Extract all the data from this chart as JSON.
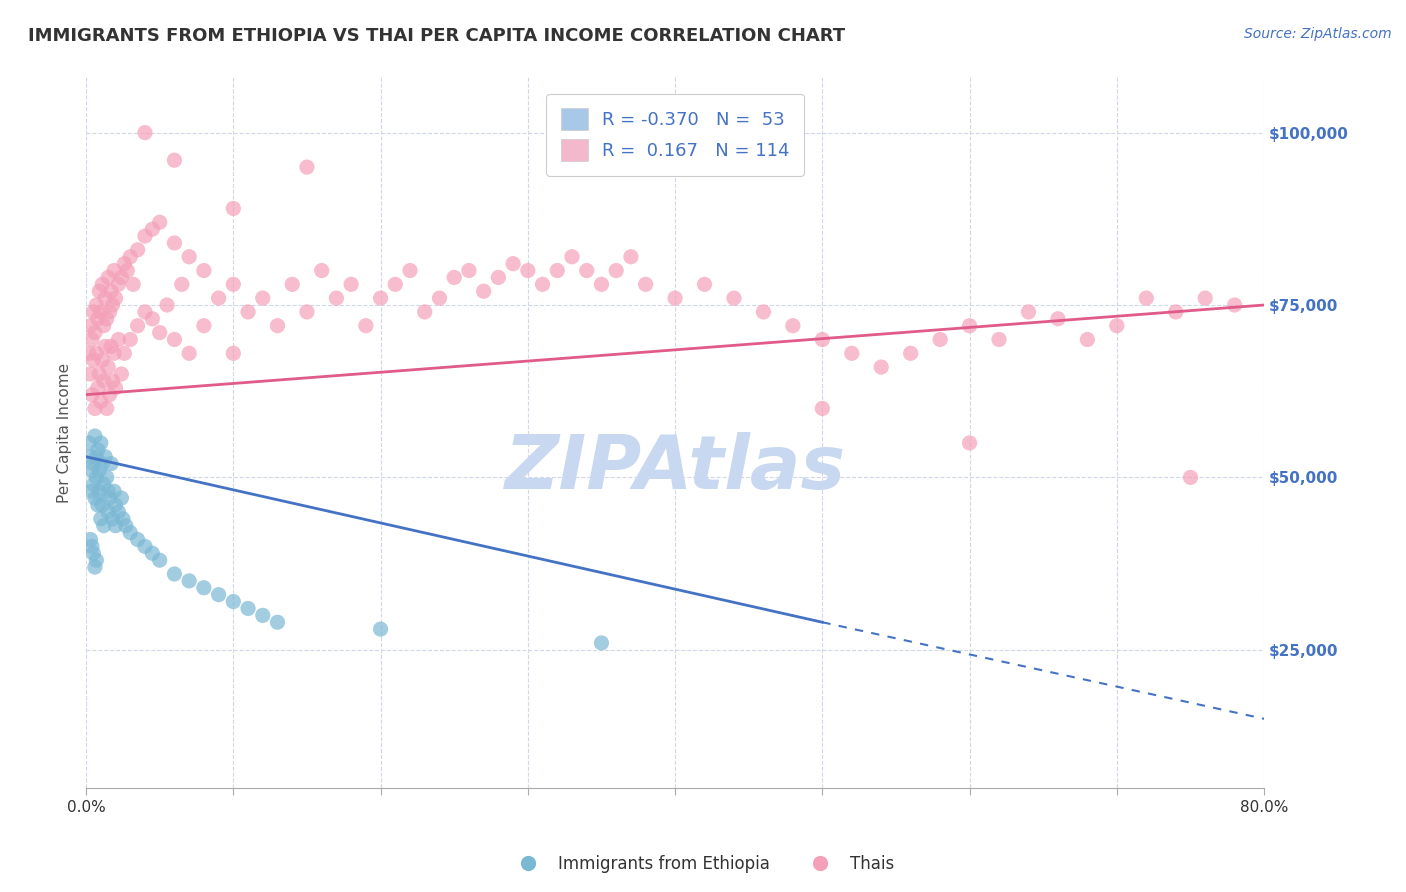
{
  "title": "IMMIGRANTS FROM ETHIOPIA VS THAI PER CAPITA INCOME CORRELATION CHART",
  "source": "Source: ZipAtlas.com",
  "ylabel": "Per Capita Income",
  "y_ticks": [
    25000,
    50000,
    75000,
    100000
  ],
  "y_tick_labels": [
    "$25,000",
    "$50,000",
    "$75,000",
    "$100,000"
  ],
  "ethiopia_color": "#7bb8d4",
  "thai_color": "#f4a0b8",
  "ethiopia_line_color": "#4472c4",
  "thai_line_color": "#e05a8a",
  "ethiopia_legend_color": "#a8c8e8",
  "thai_legend_color": "#f4b8cc",
  "watermark": "ZIPAtlas",
  "watermark_color": "#c8d8f0",
  "x_min": 0.0,
  "x_max": 0.8,
  "y_min": 5000,
  "y_max": 108000,
  "ethiopia_line_x0": 0.0,
  "ethiopia_line_y0": 53000,
  "ethiopia_line_x1": 0.5,
  "ethiopia_line_y1": 29000,
  "ethiopia_line_dash_x0": 0.5,
  "ethiopia_line_dash_y0": 29000,
  "ethiopia_line_dash_x1": 0.8,
  "ethiopia_line_dash_y1": 15000,
  "thai_line_x0": 0.0,
  "thai_line_y0": 62000,
  "thai_line_x1": 0.8,
  "thai_line_y1": 75000,
  "ethiopia_scatter": [
    [
      0.002,
      55000
    ],
    [
      0.003,
      53000
    ],
    [
      0.004,
      51000
    ],
    [
      0.004,
      48000
    ],
    [
      0.005,
      52000
    ],
    [
      0.005,
      49000
    ],
    [
      0.006,
      56000
    ],
    [
      0.006,
      47000
    ],
    [
      0.007,
      53000
    ],
    [
      0.007,
      50000
    ],
    [
      0.008,
      54000
    ],
    [
      0.008,
      46000
    ],
    [
      0.009,
      51000
    ],
    [
      0.009,
      48000
    ],
    [
      0.01,
      55000
    ],
    [
      0.01,
      44000
    ],
    [
      0.011,
      52000
    ],
    [
      0.011,
      46000
    ],
    [
      0.012,
      49000
    ],
    [
      0.012,
      43000
    ],
    [
      0.013,
      53000
    ],
    [
      0.014,
      50000
    ],
    [
      0.015,
      48000
    ],
    [
      0.015,
      45000
    ],
    [
      0.016,
      47000
    ],
    [
      0.017,
      52000
    ],
    [
      0.018,
      44000
    ],
    [
      0.019,
      48000
    ],
    [
      0.02,
      46000
    ],
    [
      0.02,
      43000
    ],
    [
      0.022,
      45000
    ],
    [
      0.024,
      47000
    ],
    [
      0.025,
      44000
    ],
    [
      0.027,
      43000
    ],
    [
      0.03,
      42000
    ],
    [
      0.035,
      41000
    ],
    [
      0.04,
      40000
    ],
    [
      0.045,
      39000
    ],
    [
      0.05,
      38000
    ],
    [
      0.06,
      36000
    ],
    [
      0.07,
      35000
    ],
    [
      0.08,
      34000
    ],
    [
      0.09,
      33000
    ],
    [
      0.1,
      32000
    ],
    [
      0.11,
      31000
    ],
    [
      0.12,
      30000
    ],
    [
      0.13,
      29000
    ],
    [
      0.003,
      41000
    ],
    [
      0.004,
      40000
    ],
    [
      0.005,
      39000
    ],
    [
      0.006,
      37000
    ],
    [
      0.007,
      38000
    ],
    [
      0.2,
      28000
    ],
    [
      0.35,
      26000
    ]
  ],
  "thai_scatter": [
    [
      0.002,
      68000
    ],
    [
      0.003,
      72000
    ],
    [
      0.003,
      65000
    ],
    [
      0.004,
      70000
    ],
    [
      0.004,
      62000
    ],
    [
      0.005,
      74000
    ],
    [
      0.005,
      67000
    ],
    [
      0.006,
      71000
    ],
    [
      0.006,
      60000
    ],
    [
      0.007,
      75000
    ],
    [
      0.007,
      68000
    ],
    [
      0.008,
      73000
    ],
    [
      0.008,
      63000
    ],
    [
      0.009,
      77000
    ],
    [
      0.009,
      65000
    ],
    [
      0.01,
      74000
    ],
    [
      0.01,
      61000
    ],
    [
      0.011,
      78000
    ],
    [
      0.011,
      67000
    ],
    [
      0.012,
      72000
    ],
    [
      0.012,
      64000
    ],
    [
      0.013,
      76000
    ],
    [
      0.013,
      69000
    ],
    [
      0.014,
      73000
    ],
    [
      0.014,
      60000
    ],
    [
      0.015,
      79000
    ],
    [
      0.015,
      66000
    ],
    [
      0.016,
      74000
    ],
    [
      0.016,
      62000
    ],
    [
      0.017,
      77000
    ],
    [
      0.017,
      69000
    ],
    [
      0.018,
      75000
    ],
    [
      0.018,
      64000
    ],
    [
      0.019,
      80000
    ],
    [
      0.019,
      68000
    ],
    [
      0.02,
      76000
    ],
    [
      0.02,
      63000
    ],
    [
      0.022,
      78000
    ],
    [
      0.022,
      70000
    ],
    [
      0.024,
      79000
    ],
    [
      0.024,
      65000
    ],
    [
      0.026,
      81000
    ],
    [
      0.026,
      68000
    ],
    [
      0.028,
      80000
    ],
    [
      0.03,
      82000
    ],
    [
      0.03,
      70000
    ],
    [
      0.032,
      78000
    ],
    [
      0.035,
      83000
    ],
    [
      0.035,
      72000
    ],
    [
      0.04,
      85000
    ],
    [
      0.04,
      74000
    ],
    [
      0.045,
      86000
    ],
    [
      0.045,
      73000
    ],
    [
      0.05,
      87000
    ],
    [
      0.05,
      71000
    ],
    [
      0.055,
      75000
    ],
    [
      0.06,
      84000
    ],
    [
      0.06,
      70000
    ],
    [
      0.065,
      78000
    ],
    [
      0.07,
      82000
    ],
    [
      0.07,
      68000
    ],
    [
      0.08,
      80000
    ],
    [
      0.08,
      72000
    ],
    [
      0.09,
      76000
    ],
    [
      0.1,
      78000
    ],
    [
      0.1,
      68000
    ],
    [
      0.11,
      74000
    ],
    [
      0.12,
      76000
    ],
    [
      0.13,
      72000
    ],
    [
      0.14,
      78000
    ],
    [
      0.15,
      74000
    ],
    [
      0.16,
      80000
    ],
    [
      0.17,
      76000
    ],
    [
      0.18,
      78000
    ],
    [
      0.19,
      72000
    ],
    [
      0.2,
      76000
    ],
    [
      0.21,
      78000
    ],
    [
      0.22,
      80000
    ],
    [
      0.23,
      74000
    ],
    [
      0.24,
      76000
    ],
    [
      0.25,
      79000
    ],
    [
      0.26,
      80000
    ],
    [
      0.27,
      77000
    ],
    [
      0.28,
      79000
    ],
    [
      0.29,
      81000
    ],
    [
      0.3,
      80000
    ],
    [
      0.31,
      78000
    ],
    [
      0.32,
      80000
    ],
    [
      0.33,
      82000
    ],
    [
      0.34,
      80000
    ],
    [
      0.35,
      78000
    ],
    [
      0.36,
      80000
    ],
    [
      0.37,
      82000
    ],
    [
      0.38,
      78000
    ],
    [
      0.4,
      76000
    ],
    [
      0.42,
      78000
    ],
    [
      0.44,
      76000
    ],
    [
      0.46,
      74000
    ],
    [
      0.48,
      72000
    ],
    [
      0.5,
      70000
    ],
    [
      0.52,
      68000
    ],
    [
      0.54,
      66000
    ],
    [
      0.56,
      68000
    ],
    [
      0.58,
      70000
    ],
    [
      0.6,
      72000
    ],
    [
      0.62,
      70000
    ],
    [
      0.64,
      74000
    ],
    [
      0.66,
      73000
    ],
    [
      0.68,
      70000
    ],
    [
      0.7,
      72000
    ],
    [
      0.72,
      76000
    ],
    [
      0.74,
      74000
    ],
    [
      0.76,
      76000
    ],
    [
      0.78,
      75000
    ],
    [
      0.1,
      89000
    ],
    [
      0.15,
      95000
    ],
    [
      0.04,
      100000
    ],
    [
      0.06,
      96000
    ],
    [
      0.5,
      60000
    ],
    [
      0.6,
      55000
    ],
    [
      0.75,
      50000
    ]
  ]
}
